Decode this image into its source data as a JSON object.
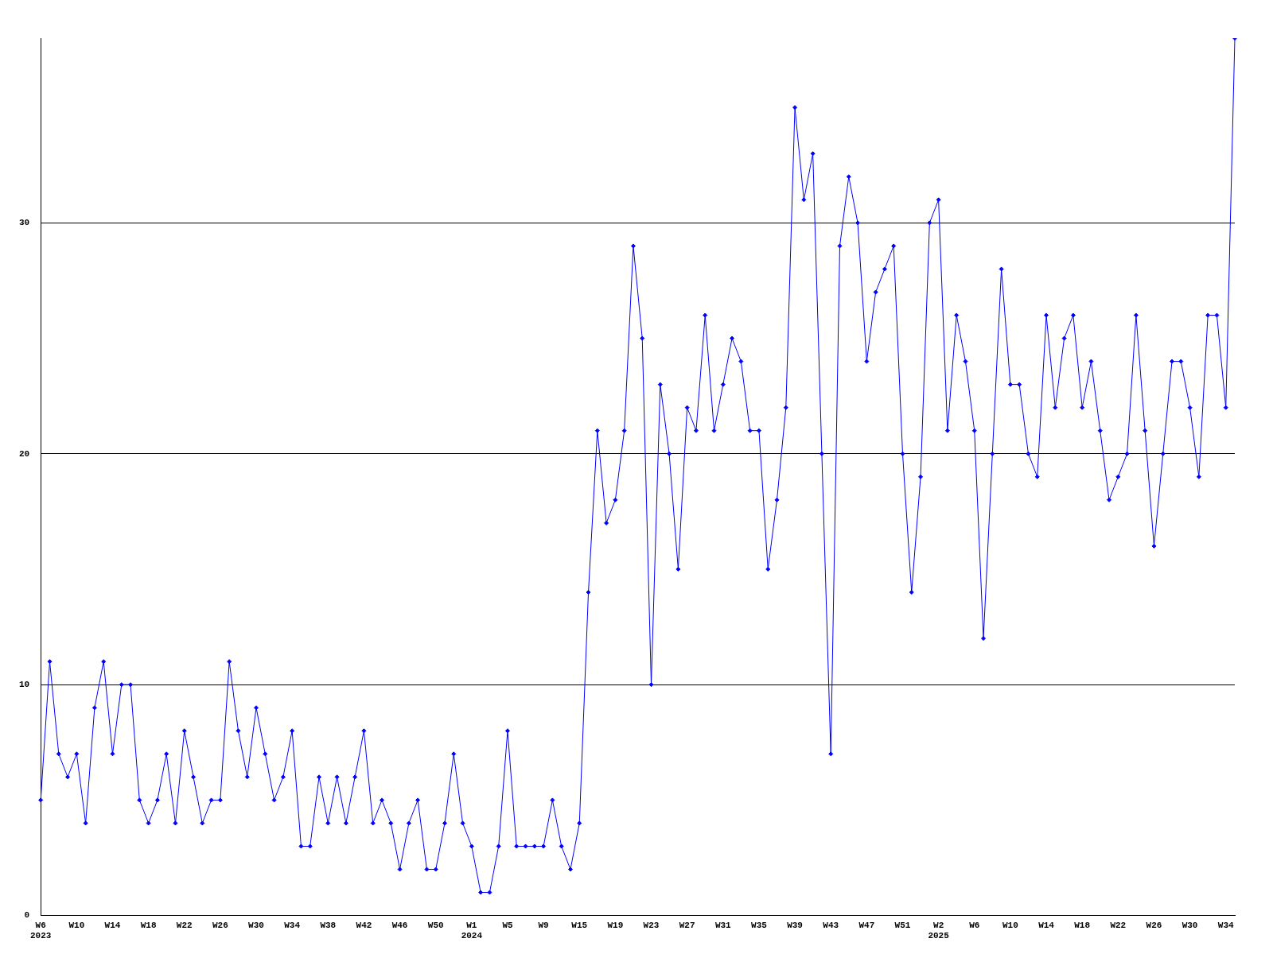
{
  "chart_data": {
    "type": "line",
    "categories": [
      "W6\n2023",
      null,
      null,
      null,
      "W10",
      null,
      null,
      null,
      "W14",
      null,
      null,
      null,
      "W18",
      null,
      null,
      null,
      "W22",
      null,
      null,
      null,
      "W26",
      null,
      null,
      null,
      "W30",
      null,
      null,
      null,
      "W34",
      null,
      null,
      null,
      "W38",
      null,
      null,
      null,
      "W42",
      null,
      null,
      null,
      "W46",
      null,
      null,
      null,
      "W50",
      null,
      null,
      null,
      "W1\n2024",
      null,
      null,
      null,
      "W5",
      null,
      null,
      null,
      "W9",
      null,
      null,
      null,
      "W15",
      null,
      null,
      null,
      "W19",
      null,
      null,
      null,
      "W23",
      null,
      null,
      null,
      "W27",
      null,
      null,
      null,
      "W31",
      null,
      null,
      null,
      "W35",
      null,
      null,
      null,
      "W39",
      null,
      null,
      null,
      "W43",
      null,
      null,
      null,
      "W47",
      null,
      null,
      null,
      "W51",
      null,
      null,
      null,
      "W2\n2025",
      null,
      null,
      null,
      "W6",
      null,
      null,
      null,
      "W10",
      null,
      null,
      null,
      "W14",
      null,
      null,
      null,
      "W18",
      null,
      null,
      null,
      "W22",
      null,
      null,
      null,
      "W26",
      null,
      null,
      null,
      "W30",
      null,
      null,
      null,
      "W34",
      null
    ],
    "series": [
      {
        "color": "#0000ff",
        "values": [
          5,
          11,
          7,
          6,
          7,
          4,
          9,
          11,
          7,
          10,
          10,
          5,
          4,
          5,
          7,
          4,
          8,
          6,
          4,
          5,
          5,
          11,
          8,
          6,
          9,
          7,
          5,
          6,
          8,
          3,
          3,
          6,
          4,
          6,
          4,
          6,
          8,
          4,
          5,
          4,
          2,
          4,
          5,
          2,
          2,
          4,
          7,
          4,
          3,
          1,
          1,
          3,
          8,
          3,
          3,
          3,
          3,
          5,
          3,
          2,
          4,
          14,
          21,
          17,
          18,
          21,
          29,
          25,
          10,
          23,
          20,
          15,
          22,
          21,
          26,
          21,
          23,
          25,
          24,
          21,
          21,
          15,
          18,
          22,
          35,
          31,
          33,
          20,
          7,
          29,
          32,
          30,
          24,
          27,
          28,
          29,
          20,
          14,
          19,
          30,
          31,
          21,
          26,
          24,
          21,
          12,
          20,
          28,
          23,
          23,
          20,
          19,
          26,
          22,
          25,
          26,
          22,
          24,
          21,
          18,
          19,
          20,
          26,
          21,
          16,
          20,
          24,
          24,
          22,
          19,
          26,
          26,
          22,
          38
        ]
      }
    ],
    "ylim": [
      0,
      38
    ],
    "yticks": [
      0,
      10,
      20,
      30
    ],
    "grid": "y",
    "legend": false,
    "marker": "diamond",
    "line_style": "solid"
  }
}
